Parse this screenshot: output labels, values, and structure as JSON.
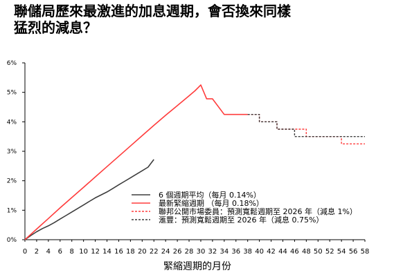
{
  "title_lines": [
    "聯儲局歷來最激進的加息週期，會否換來同樣",
    "猛烈的減息？"
  ],
  "chart_data": {
    "type": "line",
    "title": "聯儲局歷來最激進的加息週期，會否換來同樣猛烈的減息？",
    "xlabel": "緊縮週期的月份",
    "ylabel": "",
    "xlim": [
      0,
      58
    ],
    "ylim": [
      0,
      6
    ],
    "xticks": [
      "0",
      "2",
      "4",
      "6",
      "8",
      "10",
      "12",
      "14",
      "16",
      "18",
      "20",
      "22",
      "24",
      "26",
      "28",
      "30",
      "32",
      "34",
      "36",
      "38",
      "40",
      "42",
      "44",
      "46",
      "48",
      "50",
      "52",
      "54",
      "56",
      "58"
    ],
    "yticks": [
      "0%",
      "1%",
      "2%",
      "3%",
      "4%",
      "5%",
      "6%"
    ],
    "grid": false,
    "legend_position": "bottom-center",
    "series": [
      {
        "name": "6 個週期平均（每月 0.14%）",
        "color": "#3c3c3c",
        "dash": "solid",
        "x": [
          0,
          1,
          2,
          3,
          4,
          5,
          6,
          7,
          8,
          9,
          10,
          11,
          12,
          13,
          14,
          15,
          16,
          17,
          18,
          19,
          20,
          21,
          22
        ],
        "y": [
          0.0,
          0.14,
          0.27,
          0.38,
          0.47,
          0.58,
          0.7,
          0.82,
          0.94,
          1.06,
          1.18,
          1.3,
          1.42,
          1.52,
          1.62,
          1.74,
          1.86,
          1.98,
          2.1,
          2.22,
          2.34,
          2.46,
          2.72
        ]
      },
      {
        "name": "最新緊縮週期 （每月 0.18%）",
        "color": "#ff3b3b",
        "dash": "solid",
        "x": [
          0,
          2,
          4,
          6,
          8,
          10,
          12,
          14,
          16,
          18,
          20,
          22,
          24,
          26,
          28,
          29,
          30,
          31,
          32,
          34,
          36,
          38
        ],
        "y": [
          0.0,
          0.36,
          0.72,
          1.08,
          1.43,
          1.78,
          2.13,
          2.48,
          2.83,
          3.18,
          3.53,
          3.88,
          4.22,
          4.55,
          4.88,
          5.05,
          5.25,
          4.78,
          4.78,
          4.25,
          4.25,
          4.25
        ]
      },
      {
        "name": "聯邦公開市場委員：預測寬鬆週期至 2026 年（減息 1%）",
        "color": "#ff3b3b",
        "dash": "dashed",
        "x": [
          38,
          40,
          40,
          43,
          43,
          48,
          48,
          54,
          54,
          58
        ],
        "y": [
          4.25,
          4.25,
          4.0,
          4.0,
          3.75,
          3.75,
          3.5,
          3.5,
          3.25,
          3.25
        ]
      },
      {
        "name": "滙豐：預測寬鬆週期至 2026 年（減息 0.75%）",
        "color": "#3c3c3c",
        "dash": "dashed",
        "x": [
          38,
          40,
          40,
          43,
          43,
          46,
          46,
          58
        ],
        "y": [
          4.25,
          4.25,
          4.0,
          4.0,
          3.75,
          3.75,
          3.5,
          3.5
        ]
      }
    ]
  }
}
